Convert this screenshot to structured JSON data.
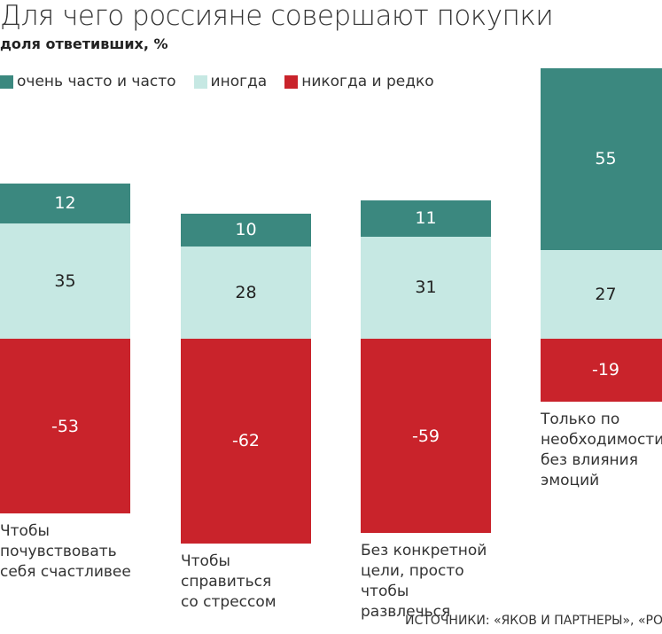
{
  "chart_data": {
    "type": "bar",
    "stacked": true,
    "diverging": true,
    "title": "Для чего россияне совершают покупки",
    "subtitle": "доля ответивших, %",
    "categories": [
      "Чтобы\nпочувствовать\nсебя счастливее",
      "Чтобы\nсправиться\nсо стрессом",
      "Без конкретной\nцели, просто\nчтобы развлечься",
      "Только по\nнеобходимости,\nбез влияния\nэмоций"
    ],
    "series": [
      {
        "name": "очень часто и часто",
        "color": "#3b887f",
        "values": [
          12,
          10,
          11,
          55
        ]
      },
      {
        "name": "иногда",
        "color": "#c6e8e3",
        "values": [
          35,
          28,
          31,
          27
        ]
      },
      {
        "name": "никогда и редко",
        "color": "#c9232b",
        "values": [
          -53,
          -62,
          -59,
          -19
        ]
      }
    ],
    "legend_position": "top-left",
    "grid": false,
    "data_labels": true,
    "source": "ИСТОЧНИКИ: «ЯКОВ И ПАРТНЕРЫ», «РОМИР"
  }
}
